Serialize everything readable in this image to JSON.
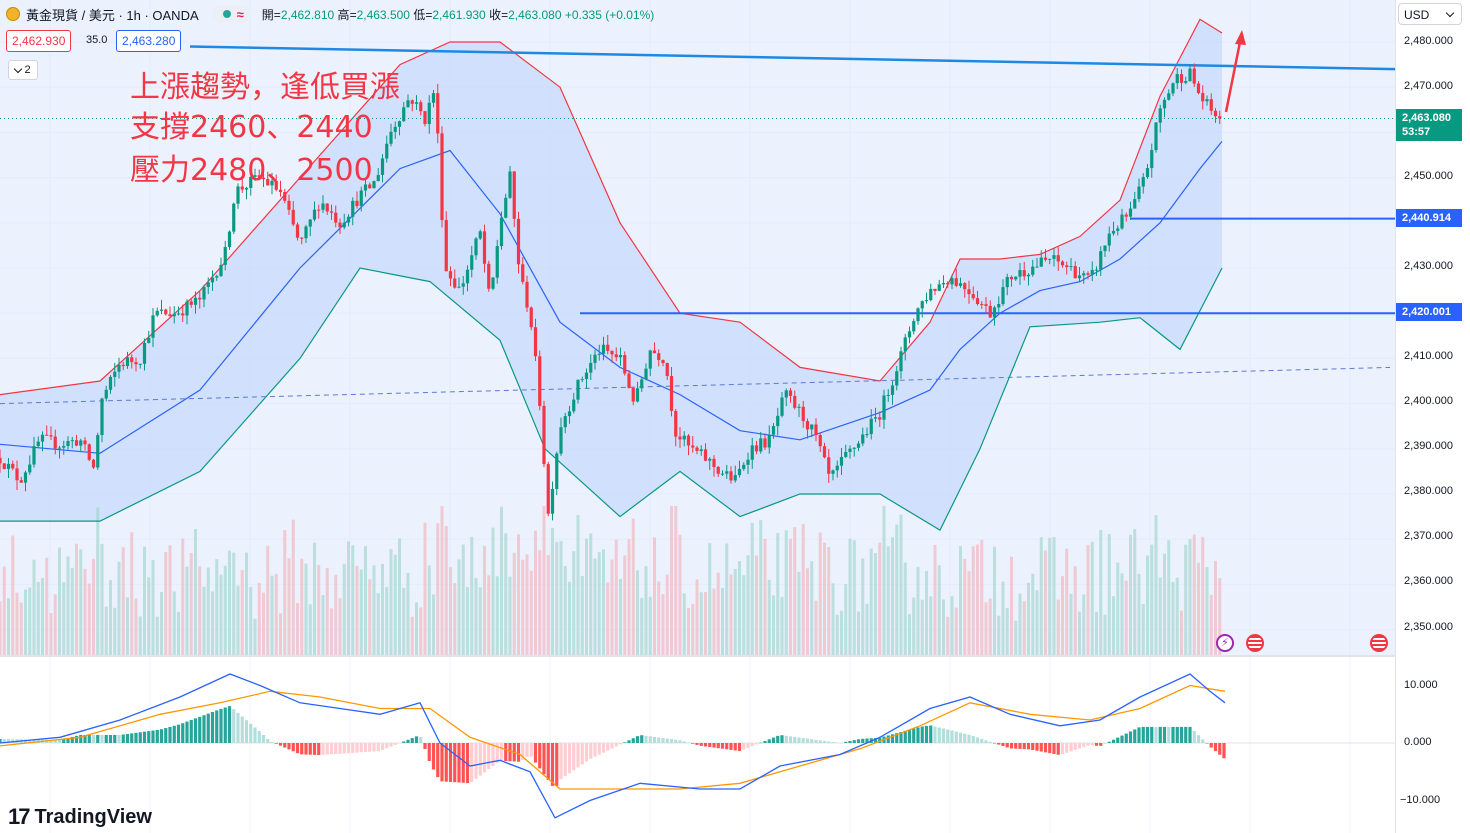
{
  "header": {
    "symbol_title": "黃金現貨 / 美元 · 1h · OANDA",
    "approx_symbol": "≈",
    "ohlc": {
      "open_label": "開",
      "open": "2,462.810",
      "high_label": "高",
      "high": "2,463.500",
      "low_label": "低",
      "low": "2,461.930",
      "close_label": "收",
      "close": "2,463.080",
      "change": "+0.335 (+0.01%)"
    }
  },
  "trade": {
    "sell": "2,462.930",
    "spread": "35.0",
    "buy": "2,463.280"
  },
  "indicator_count": "2",
  "annotation": {
    "line1": "上漲趨勢，逢低買漲",
    "line2": "支撐2460、2440",
    "line3": "壓力2480、2500"
  },
  "axis": {
    "currency": "USD",
    "price_ticks": [
      "2,480.000",
      "2,470.000",
      "2,450.000",
      "2,430.000",
      "2,410.000",
      "2,400.000",
      "2,390.000",
      "2,380.000",
      "2,370.000",
      "2,360.000",
      "2,350.000"
    ],
    "macd_ticks": [
      "10.000",
      "0.000",
      "−10.000"
    ],
    "levels": [
      {
        "price": 2440.914,
        "label": "2,440.914"
      },
      {
        "price": 2420.001,
        "label": "2,420.001"
      }
    ],
    "last_price": "2,463.080",
    "countdown": "53:57"
  },
  "brand": "TradingView",
  "colors": {
    "up": "#089981",
    "down": "#f23645",
    "level": "#2962ff",
    "upper_band": "#f23645",
    "lower_band": "#089981",
    "mid_band": "#2962ff",
    "macd": "#2962ff",
    "signal": "#ff9800"
  },
  "chart_data": {
    "type": "candlestick",
    "interval": "1h",
    "y_range": [
      2343,
      2488
    ],
    "macd_range": [
      -14,
      15
    ],
    "anchors": [
      [
        0,
        2388
      ],
      [
        20,
        2383
      ],
      [
        40,
        2392
      ],
      [
        60,
        2391
      ],
      [
        80,
        2392
      ],
      [
        95,
        2385
      ],
      [
        100,
        2400
      ],
      [
        120,
        2409
      ],
      [
        140,
        2410
      ],
      [
        155,
        2420
      ],
      [
        175,
        2420
      ],
      [
        200,
        2423
      ],
      [
        225,
        2433
      ],
      [
        235,
        2447
      ],
      [
        260,
        2450
      ],
      [
        280,
        2447
      ],
      [
        300,
        2435
      ],
      [
        320,
        2445
      ],
      [
        340,
        2440
      ],
      [
        360,
        2446
      ],
      [
        375,
        2449
      ],
      [
        390,
        2460
      ],
      [
        410,
        2468
      ],
      [
        425,
        2463
      ],
      [
        435,
        2470
      ],
      [
        445,
        2430
      ],
      [
        460,
        2425
      ],
      [
        480,
        2438
      ],
      [
        490,
        2422
      ],
      [
        500,
        2440
      ],
      [
        510,
        2450
      ],
      [
        520,
        2428
      ],
      [
        530,
        2420
      ],
      [
        540,
        2400
      ],
      [
        548,
        2375
      ],
      [
        560,
        2395
      ],
      [
        580,
        2405
      ],
      [
        600,
        2412
      ],
      [
        620,
        2410
      ],
      [
        635,
        2400
      ],
      [
        650,
        2412
      ],
      [
        665,
        2410
      ],
      [
        675,
        2394
      ],
      [
        690,
        2390
      ],
      [
        705,
        2388
      ],
      [
        720,
        2385
      ],
      [
        735,
        2383
      ],
      [
        750,
        2390
      ],
      [
        770,
        2392
      ],
      [
        785,
        2402
      ],
      [
        800,
        2398
      ],
      [
        815,
        2393
      ],
      [
        830,
        2383
      ],
      [
        845,
        2388
      ],
      [
        860,
        2392
      ],
      [
        880,
        2398
      ],
      [
        900,
        2410
      ],
      [
        915,
        2420
      ],
      [
        930,
        2425
      ],
      [
        950,
        2428
      ],
      [
        970,
        2425
      ],
      [
        990,
        2420
      ],
      [
        1010,
        2428
      ],
      [
        1030,
        2430
      ],
      [
        1050,
        2432
      ],
      [
        1070,
        2430
      ],
      [
        1090,
        2427
      ],
      [
        1110,
        2438
      ],
      [
        1130,
        2442
      ],
      [
        1145,
        2450
      ],
      [
        1160,
        2465
      ],
      [
        1175,
        2472
      ],
      [
        1190,
        2473
      ],
      [
        1200,
        2468
      ],
      [
        1210,
        2465
      ],
      [
        1222,
        2463.08
      ]
    ],
    "volume_range": [
      0,
      190
    ],
    "bollinger": {
      "upper": [
        [
          0,
          2402
        ],
        [
          100,
          2405
        ],
        [
          200,
          2425
        ],
        [
          300,
          2450
        ],
        [
          400,
          2475
        ],
        [
          450,
          2480
        ],
        [
          500,
          2480
        ],
        [
          560,
          2470
        ],
        [
          620,
          2440
        ],
        [
          680,
          2420
        ],
        [
          740,
          2418
        ],
        [
          800,
          2408
        ],
        [
          880,
          2405
        ],
        [
          930,
          2418
        ],
        [
          960,
          2432
        ],
        [
          1000,
          2432
        ],
        [
          1040,
          2433
        ],
        [
          1080,
          2437
        ],
        [
          1120,
          2445
        ],
        [
          1160,
          2468
        ],
        [
          1200,
          2485
        ],
        [
          1222,
          2482
        ]
      ],
      "middle": [
        [
          0,
          2391
        ],
        [
          100,
          2389
        ],
        [
          200,
          2403
        ],
        [
          300,
          2430
        ],
        [
          400,
          2452
        ],
        [
          450,
          2456
        ],
        [
          500,
          2442
        ],
        [
          560,
          2418
        ],
        [
          620,
          2408
        ],
        [
          680,
          2402
        ],
        [
          740,
          2394
        ],
        [
          800,
          2392
        ],
        [
          880,
          2398
        ],
        [
          930,
          2403
        ],
        [
          960,
          2412
        ],
        [
          1000,
          2420
        ],
        [
          1040,
          2425
        ],
        [
          1080,
          2427
        ],
        [
          1120,
          2432
        ],
        [
          1160,
          2440
        ],
        [
          1200,
          2452
        ],
        [
          1222,
          2458
        ]
      ],
      "lower": [
        [
          0,
          2374
        ],
        [
          100,
          2374
        ],
        [
          200,
          2385
        ],
        [
          300,
          2410
        ],
        [
          360,
          2430
        ],
        [
          430,
          2427
        ],
        [
          500,
          2414
        ],
        [
          545,
          2390
        ],
        [
          620,
          2375
        ],
        [
          680,
          2385
        ],
        [
          740,
          2375
        ],
        [
          800,
          2380
        ],
        [
          880,
          2380
        ],
        [
          940,
          2372
        ],
        [
          980,
          2390
        ],
        [
          1030,
          2417
        ],
        [
          1100,
          2418
        ],
        [
          1140,
          2419
        ],
        [
          1180,
          2412
        ],
        [
          1222,
          2430
        ]
      ]
    },
    "long_trend_line": [
      [
        0,
        2400
      ],
      [
        1390,
        2408
      ]
    ],
    "resistance_trend_line": [
      [
        190,
        2479
      ],
      [
        1395,
        2474
      ]
    ],
    "support_lines": [
      {
        "from_x": 1130,
        "price": 2440.914
      },
      {
        "from_x": 580,
        "price": 2420.001
      }
    ],
    "macd_series": {
      "macd": [
        [
          0,
          0
        ],
        [
          60,
          1
        ],
        [
          120,
          4
        ],
        [
          180,
          8
        ],
        [
          230,
          12
        ],
        [
          260,
          10
        ],
        [
          300,
          7
        ],
        [
          340,
          6
        ],
        [
          380,
          5
        ],
        [
          420,
          7
        ],
        [
          440,
          0
        ],
        [
          470,
          -4
        ],
        [
          500,
          -3
        ],
        [
          530,
          -5
        ],
        [
          555,
          -13
        ],
        [
          590,
          -10
        ],
        [
          640,
          -7
        ],
        [
          700,
          -8
        ],
        [
          740,
          -8
        ],
        [
          780,
          -4
        ],
        [
          840,
          -2
        ],
        [
          880,
          1
        ],
        [
          930,
          6
        ],
        [
          970,
          8
        ],
        [
          1010,
          5
        ],
        [
          1060,
          3
        ],
        [
          1100,
          4
        ],
        [
          1140,
          8
        ],
        [
          1190,
          12
        ],
        [
          1210,
          9
        ],
        [
          1225,
          7
        ]
      ],
      "signal": [
        [
          0,
          -0.5
        ],
        [
          80,
          1
        ],
        [
          160,
          5
        ],
        [
          220,
          7
        ],
        [
          270,
          9
        ],
        [
          320,
          8
        ],
        [
          380,
          6
        ],
        [
          430,
          6
        ],
        [
          470,
          1
        ],
        [
          520,
          -2
        ],
        [
          560,
          -8
        ],
        [
          620,
          -8
        ],
        [
          680,
          -8
        ],
        [
          740,
          -7
        ],
        [
          800,
          -4
        ],
        [
          860,
          -1
        ],
        [
          920,
          3
        ],
        [
          970,
          7
        ],
        [
          1030,
          5
        ],
        [
          1090,
          4
        ],
        [
          1140,
          6
        ],
        [
          1190,
          10
        ],
        [
          1225,
          9
        ]
      ]
    }
  }
}
